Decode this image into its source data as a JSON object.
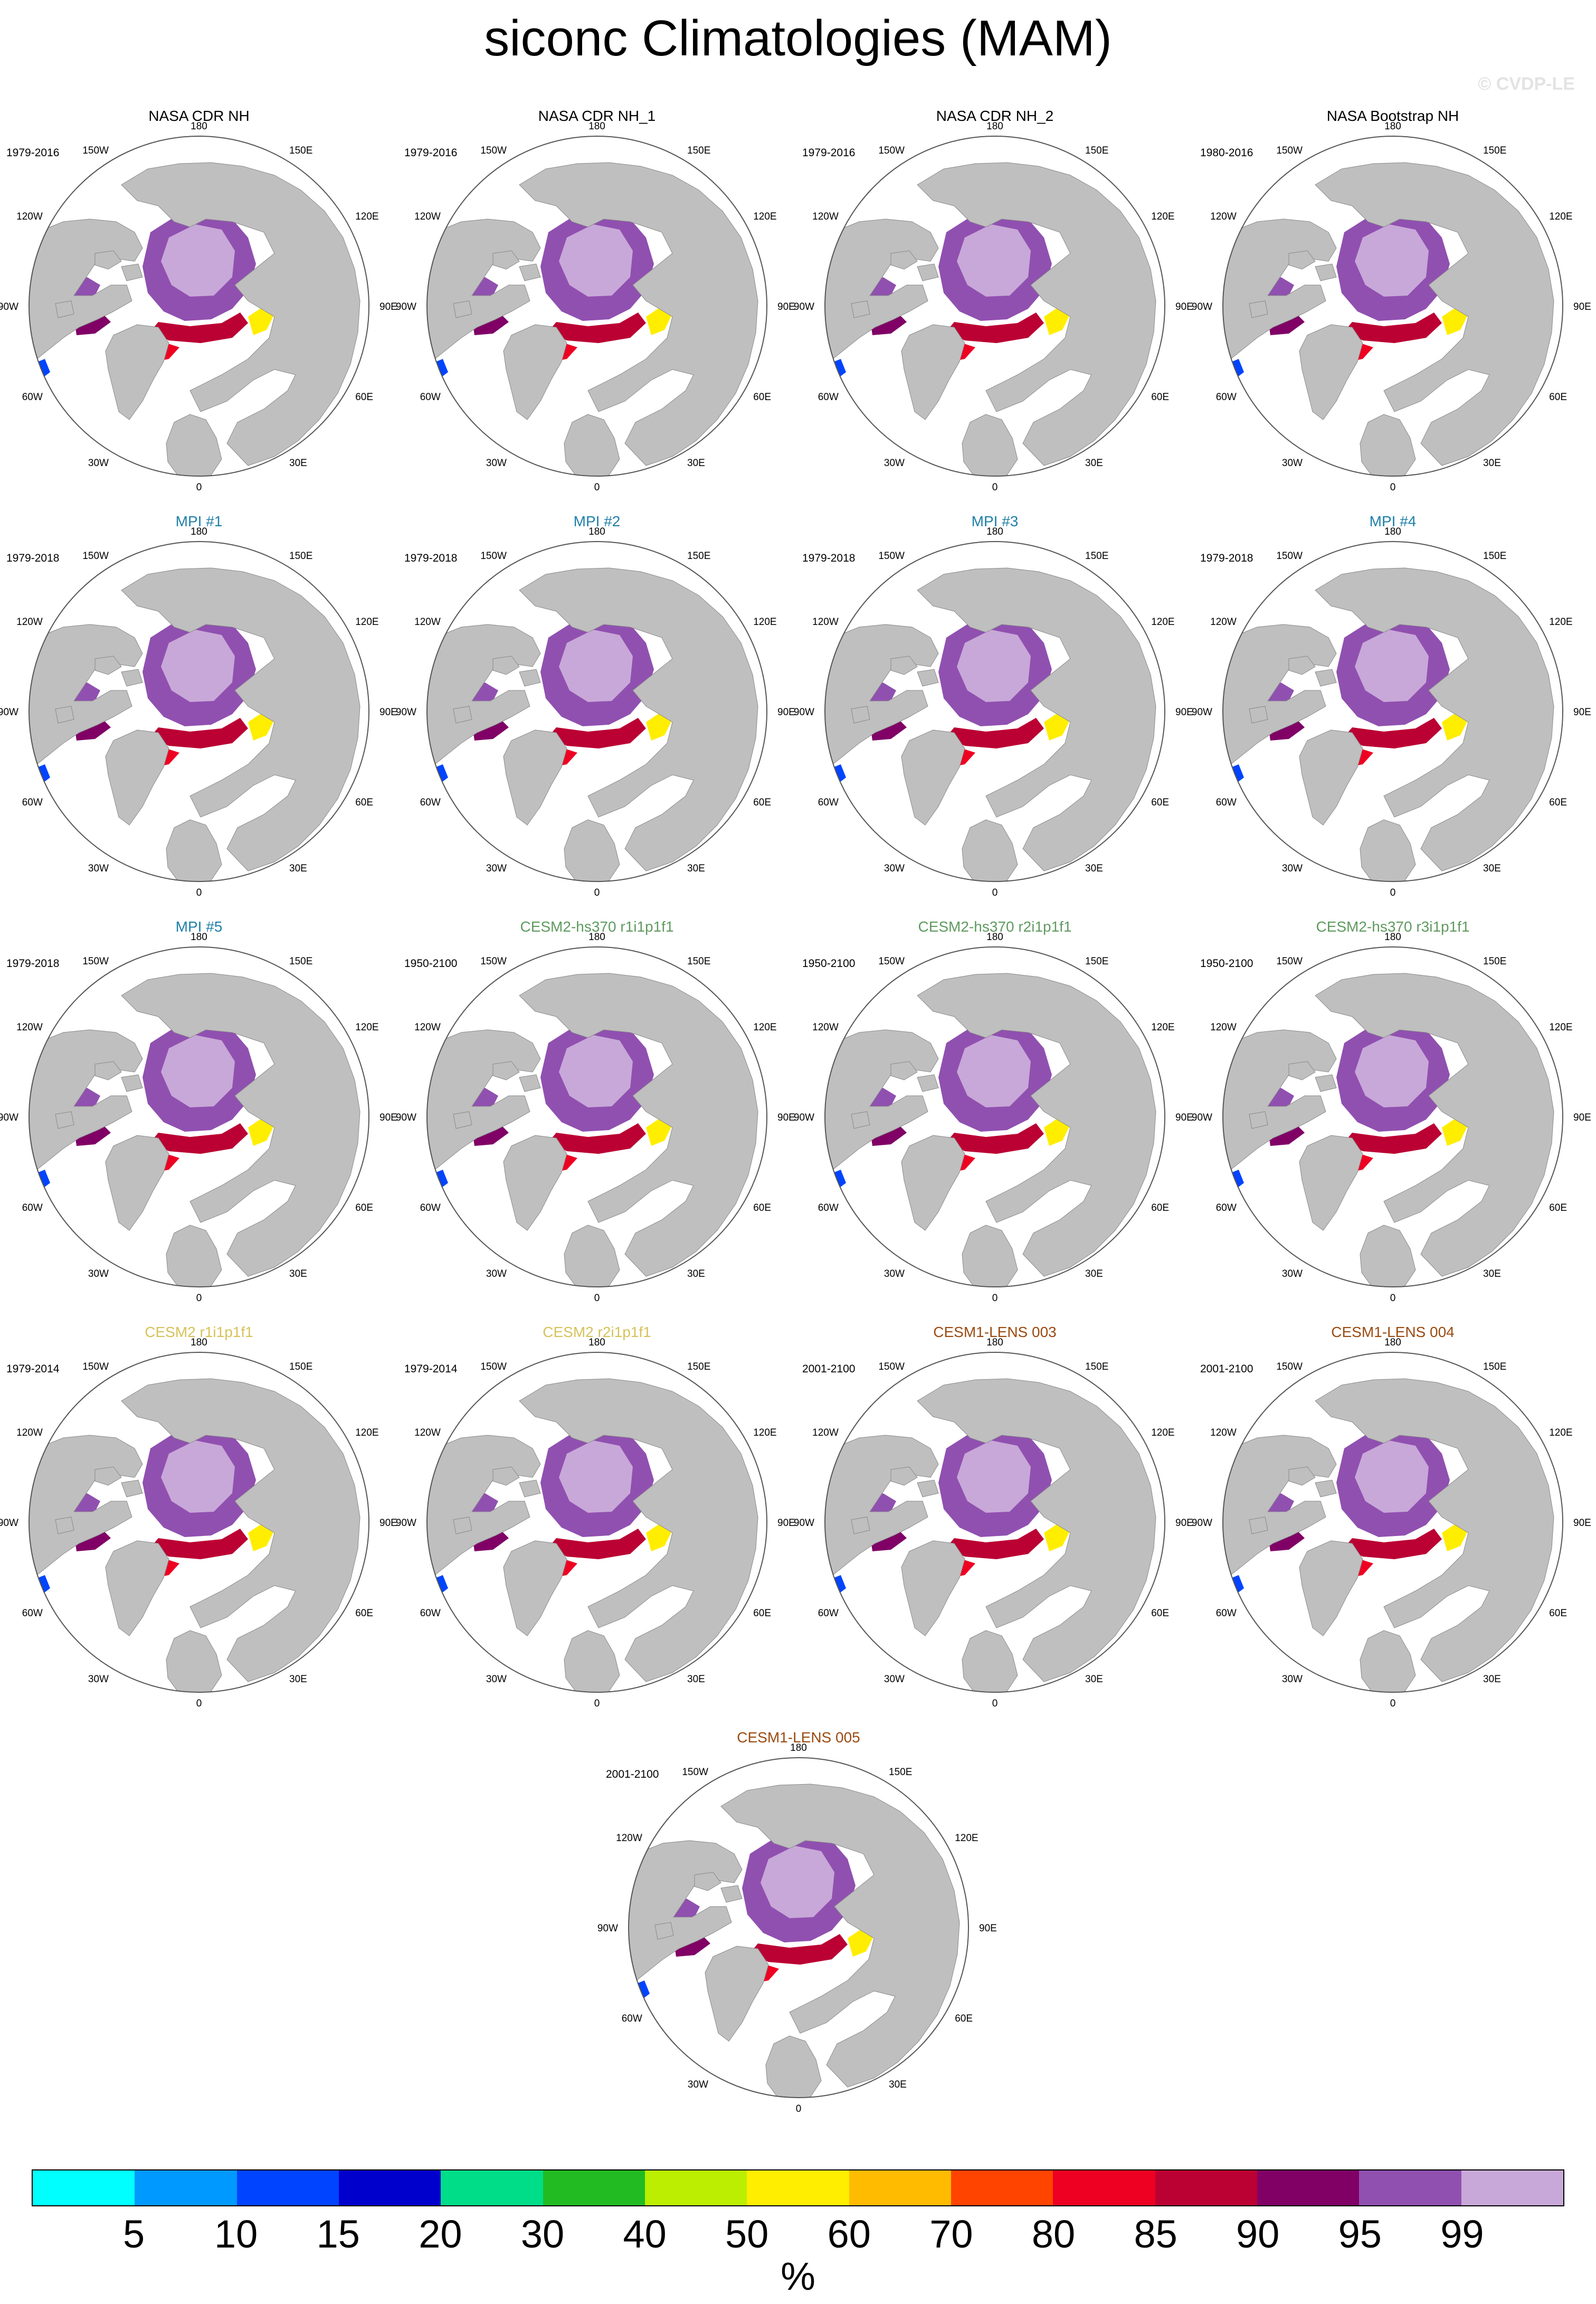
{
  "title": "siconc Climatologies (MAM)",
  "watermark": "© CVDP-LE",
  "lon_labels": {
    "n180": "180",
    "w150": "150W",
    "e150": "150E",
    "w120": "120W",
    "e120": "120E",
    "w90": "90W",
    "e90": "90E",
    "w60": "60W",
    "e60": "60E",
    "w30": "30W",
    "e30": "30E",
    "s0": "0"
  },
  "panels": [
    {
      "title": "NASA CDR NH",
      "period": "1979-2016",
      "color": "#000000"
    },
    {
      "title": "NASA CDR NH_1",
      "period": "1979-2016",
      "color": "#000000"
    },
    {
      "title": "NASA CDR NH_2",
      "period": "1979-2016",
      "color": "#000000"
    },
    {
      "title": "NASA Bootstrap NH",
      "period": "1980-2016",
      "color": "#000000"
    },
    {
      "title": "MPI #1",
      "period": "1979-2018",
      "color": "#1f7fa8"
    },
    {
      "title": "MPI #2",
      "period": "1979-2018",
      "color": "#1f7fa8"
    },
    {
      "title": "MPI #3",
      "period": "1979-2018",
      "color": "#1f7fa8"
    },
    {
      "title": "MPI #4",
      "period": "1979-2018",
      "color": "#1f7fa8"
    },
    {
      "title": "MPI #5",
      "period": "1979-2018",
      "color": "#1f7fa8"
    },
    {
      "title": "CESM2-hs370 r1i1p1f1",
      "period": "1950-2100",
      "color": "#5f9a5f"
    },
    {
      "title": "CESM2-hs370 r2i1p1f1",
      "period": "1950-2100",
      "color": "#5f9a5f"
    },
    {
      "title": "CESM2-hs370 r3i1p1f1",
      "period": "1950-2100",
      "color": "#5f9a5f"
    },
    {
      "title": "CESM2 r1i1p1f1",
      "period": "1979-2014",
      "color": "#d6c25a"
    },
    {
      "title": "CESM2 r2i1p1f1",
      "period": "1979-2014",
      "color": "#d6c25a"
    },
    {
      "title": "CESM1-LENS 003",
      "period": "2001-2100",
      "color": "#9a4a10"
    },
    {
      "title": "CESM1-LENS 004",
      "period": "2001-2100",
      "color": "#9a4a10"
    },
    {
      "title": "CESM1-LENS 005",
      "period": "2001-2100",
      "color": "#9a4a10"
    }
  ],
  "colorbar": {
    "colors": [
      "#00ffff",
      "#0099ff",
      "#0044ff",
      "#0000cc",
      "#00dd88",
      "#22bb22",
      "#bbee00",
      "#ffee00",
      "#ffbb00",
      "#ff4400",
      "#ee0022",
      "#bb0033",
      "#800066",
      "#9050b0",
      "#c8a8d8"
    ],
    "labels": [
      "5",
      "10",
      "15",
      "20",
      "30",
      "40",
      "50",
      "60",
      "70",
      "80",
      "85",
      "90",
      "95",
      "99"
    ],
    "unit": "%"
  }
}
